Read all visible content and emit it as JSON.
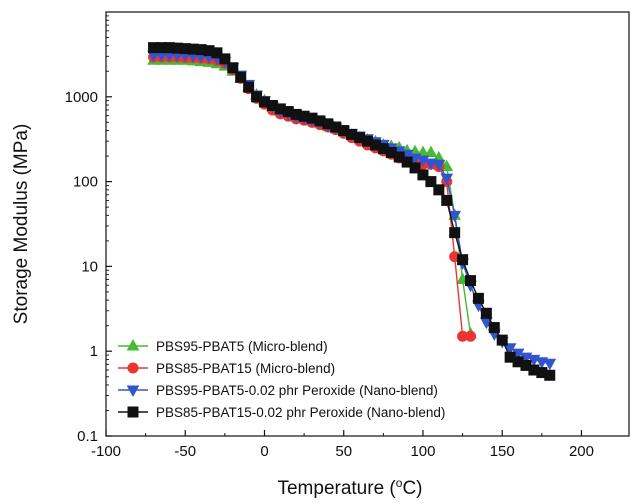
{
  "chart_data": {
    "type": "line",
    "title": "",
    "xlabel": "Temperature (°C)",
    "xlabel_parts": {
      "main": "Temperature (",
      "sup": "o",
      "unit": "C)"
    },
    "ylabel": "Storage Modulus (MPa)",
    "xlim": [
      -100,
      230
    ],
    "ylim": [
      0.1,
      10000
    ],
    "y_scale": "log",
    "grid": false,
    "legend_position": "bottom-left",
    "x_ticks": [
      {
        "value": -100,
        "label": "-100"
      },
      {
        "value": -50,
        "label": "-50"
      },
      {
        "value": 0,
        "label": "0"
      },
      {
        "value": 50,
        "label": "50"
      },
      {
        "value": 100,
        "label": "100"
      },
      {
        "value": 150,
        "label": "150"
      },
      {
        "value": 200,
        "label": "200"
      }
    ],
    "y_ticks": [
      {
        "value": 0.1,
        "label": "0.1"
      },
      {
        "value": 1,
        "label": "1"
      },
      {
        "value": 10,
        "label": "10"
      },
      {
        "value": 100,
        "label": "100"
      },
      {
        "value": 1000,
        "label": "1000"
      }
    ],
    "series": [
      {
        "name": "PBS95-PBAT5 (Micro-blend)",
        "color": "#44bb33",
        "marker": "triangle-up",
        "x": [
          -70,
          -65,
          -60,
          -55,
          -50,
          -45,
          -40,
          -35,
          -30,
          -25,
          -20,
          -15,
          -10,
          -5,
          0,
          5,
          10,
          15,
          20,
          25,
          30,
          35,
          40,
          45,
          50,
          55,
          60,
          65,
          70,
          75,
          80,
          85,
          90,
          95,
          100,
          105,
          110,
          115,
          120,
          125,
          130
        ],
        "y": [
          2700,
          2700,
          2700,
          2700,
          2700,
          2650,
          2600,
          2550,
          2450,
          2300,
          2000,
          1650,
          1300,
          1050,
          900,
          760,
          680,
          630,
          580,
          560,
          520,
          490,
          450,
          420,
          385,
          350,
          330,
          310,
          295,
          270,
          260,
          250,
          230,
          225,
          220,
          220,
          190,
          150,
          40,
          7,
          1.6
        ]
      },
      {
        "name": "PBS85-PBAT15 (Micro-blend)",
        "color": "#ee3333",
        "marker": "circle",
        "x": [
          -70,
          -65,
          -60,
          -55,
          -50,
          -45,
          -40,
          -35,
          -30,
          -25,
          -20,
          -15,
          -10,
          -5,
          0,
          5,
          10,
          15,
          20,
          25,
          30,
          35,
          40,
          45,
          50,
          55,
          60,
          65,
          70,
          75,
          80,
          85,
          90,
          95,
          100,
          105,
          110,
          115,
          120,
          125,
          130
        ],
        "y": [
          2950,
          2950,
          2950,
          2950,
          2900,
          2900,
          2850,
          2800,
          2700,
          2500,
          2100,
          1650,
          1250,
          960,
          820,
          700,
          630,
          590,
          550,
          530,
          500,
          470,
          440,
          410,
          370,
          330,
          300,
          270,
          250,
          230,
          210,
          190,
          175,
          160,
          160,
          160,
          150,
          100,
          13,
          1.5,
          1.5
        ]
      },
      {
        "name": "PBS95-PBAT5-0.02 phr Peroxide (Nano-blend)",
        "color": "#3355cc",
        "marker": "triangle-down",
        "x": [
          -70,
          -65,
          -60,
          -55,
          -50,
          -45,
          -40,
          -35,
          -30,
          -25,
          -20,
          -15,
          -10,
          -5,
          0,
          5,
          10,
          15,
          20,
          25,
          30,
          35,
          40,
          45,
          50,
          55,
          60,
          65,
          70,
          75,
          80,
          85,
          90,
          95,
          100,
          105,
          110,
          115,
          120,
          125,
          130,
          135,
          140,
          145,
          150,
          155,
          160,
          165,
          170,
          175,
          180
        ],
        "y": [
          3100,
          3100,
          3100,
          3100,
          3100,
          3050,
          3000,
          2950,
          2850,
          2600,
          2200,
          1800,
          1400,
          1050,
          900,
          770,
          680,
          630,
          580,
          560,
          530,
          500,
          460,
          430,
          395,
          370,
          345,
          320,
          295,
          275,
          250,
          230,
          210,
          190,
          180,
          165,
          160,
          110,
          40,
          11,
          6,
          3.5,
          2.2,
          1.6,
          1.3,
          1.1,
          0.95,
          0.85,
          0.8,
          0.75,
          0.72
        ]
      },
      {
        "name": "PBS85-PBAT15-0.02 phr Peroxide (Nano-blend)",
        "color": "#111111",
        "marker": "square",
        "x": [
          -70,
          -65,
          -60,
          -55,
          -50,
          -45,
          -40,
          -35,
          -30,
          -25,
          -20,
          -15,
          -10,
          -5,
          0,
          5,
          10,
          15,
          20,
          25,
          30,
          35,
          40,
          45,
          50,
          55,
          60,
          65,
          70,
          75,
          80,
          85,
          90,
          95,
          100,
          105,
          110,
          115,
          120,
          125,
          130,
          135,
          140,
          145,
          150,
          155,
          160,
          165,
          170,
          175,
          180
        ],
        "y": [
          3800,
          3800,
          3800,
          3750,
          3700,
          3650,
          3600,
          3500,
          3300,
          2800,
          2200,
          1700,
          1300,
          1000,
          870,
          790,
          720,
          670,
          620,
          590,
          560,
          520,
          480,
          440,
          400,
          360,
          330,
          300,
          270,
          245,
          220,
          195,
          170,
          145,
          120,
          100,
          80,
          60,
          25,
          12,
          6.8,
          4.2,
          2.8,
          1.9,
          1.35,
          0.85,
          0.75,
          0.68,
          0.6,
          0.56,
          0.52
        ]
      }
    ]
  }
}
